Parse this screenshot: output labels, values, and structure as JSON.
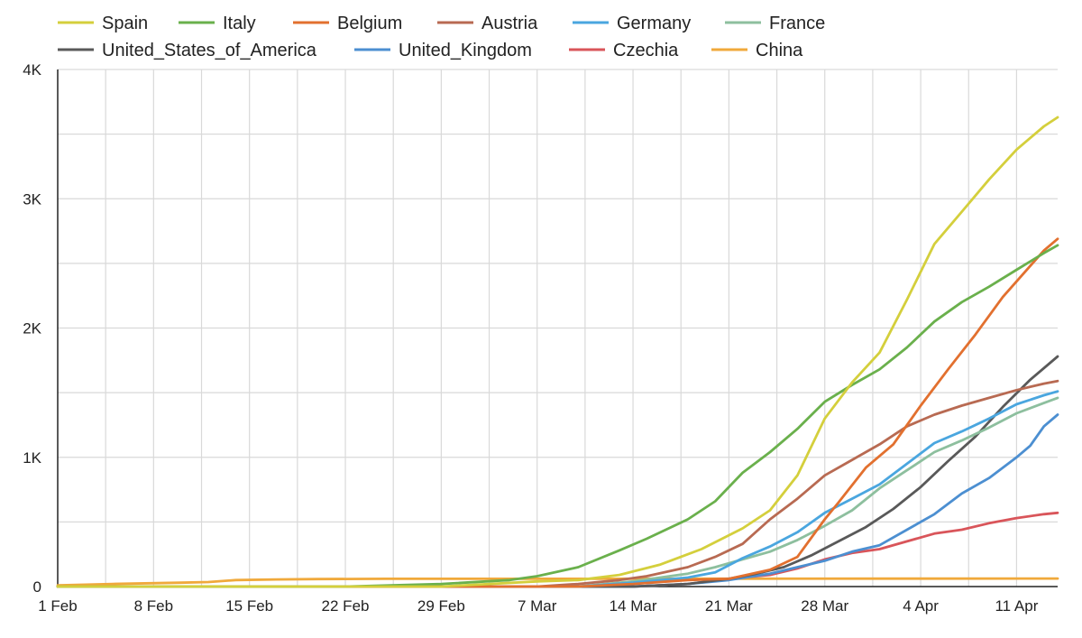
{
  "chart_data": {
    "type": "line",
    "title": "",
    "xlabel": "",
    "ylabel": "",
    "x_start": "1 Feb",
    "x_end": "14 Apr",
    "x_ticks": [
      "1 Feb",
      "8 Feb",
      "15 Feb",
      "22 Feb",
      "29 Feb",
      "7 Mar",
      "14 Mar",
      "21 Mar",
      "28 Mar",
      "4 Apr",
      "11 Apr"
    ],
    "y_ticks": [
      "0",
      "1K",
      "2K",
      "3K",
      "4K"
    ],
    "ylim": [
      0,
      4000
    ],
    "grid": true,
    "legend_position": "top",
    "series": [
      {
        "name": "Spain",
        "color": "#d4cf3c",
        "points": [
          [
            "1 Feb",
            0
          ],
          [
            "29 Feb",
            0
          ],
          [
            "7 Mar",
            40
          ],
          [
            "10 Mar",
            50
          ],
          [
            "13 Mar",
            90
          ],
          [
            "16 Mar",
            170
          ],
          [
            "19 Mar",
            290
          ],
          [
            "22 Mar",
            450
          ],
          [
            "24 Mar",
            590
          ],
          [
            "26 Mar",
            860
          ],
          [
            "28 Mar",
            1300
          ],
          [
            "30 Mar",
            1580
          ],
          [
            "1 Apr",
            1810
          ],
          [
            "3 Apr",
            2220
          ],
          [
            "5 Apr",
            2650
          ],
          [
            "7 Apr",
            2900
          ],
          [
            "9 Apr",
            3150
          ],
          [
            "11 Apr",
            3380
          ],
          [
            "13 Apr",
            3560
          ],
          [
            "14 Apr",
            3630
          ]
        ]
      },
      {
        "name": "Italy",
        "color": "#6ab04c",
        "points": [
          [
            "1 Feb",
            0
          ],
          [
            "22 Feb",
            0
          ],
          [
            "29 Feb",
            20
          ],
          [
            "5 Mar",
            50
          ],
          [
            "7 Mar",
            80
          ],
          [
            "10 Mar",
            150
          ],
          [
            "13 Mar",
            280
          ],
          [
            "15 Mar",
            370
          ],
          [
            "18 Mar",
            520
          ],
          [
            "20 Mar",
            660
          ],
          [
            "22 Mar",
            880
          ],
          [
            "24 Mar",
            1040
          ],
          [
            "26 Mar",
            1220
          ],
          [
            "28 Mar",
            1430
          ],
          [
            "30 Mar",
            1560
          ],
          [
            "1 Apr",
            1680
          ],
          [
            "3 Apr",
            1850
          ],
          [
            "5 Apr",
            2050
          ],
          [
            "7 Apr",
            2200
          ],
          [
            "9 Apr",
            2320
          ],
          [
            "11 Apr",
            2450
          ],
          [
            "13 Apr",
            2580
          ],
          [
            "14 Apr",
            2640
          ]
        ]
      },
      {
        "name": "Belgium",
        "color": "#e2702f",
        "points": [
          [
            "1 Feb",
            0
          ],
          [
            "10 Mar",
            0
          ],
          [
            "14 Mar",
            20
          ],
          [
            "18 Mar",
            50
          ],
          [
            "21 Mar",
            60
          ],
          [
            "24 Mar",
            130
          ],
          [
            "26 Mar",
            230
          ],
          [
            "28 Mar",
            520
          ],
          [
            "29 Mar",
            650
          ],
          [
            "31 Mar",
            920
          ],
          [
            "2 Apr",
            1100
          ],
          [
            "4 Apr",
            1400
          ],
          [
            "6 Apr",
            1680
          ],
          [
            "8 Apr",
            1950
          ],
          [
            "10 Apr",
            2240
          ],
          [
            "12 Apr",
            2480
          ],
          [
            "13 Apr",
            2600
          ],
          [
            "14 Apr",
            2690
          ]
        ]
      },
      {
        "name": "Austria",
        "color": "#b86a52",
        "points": [
          [
            "1 Feb",
            0
          ],
          [
            "7 Mar",
            0
          ],
          [
            "10 Mar",
            20
          ],
          [
            "13 Mar",
            50
          ],
          [
            "15 Mar",
            80
          ],
          [
            "18 Mar",
            150
          ],
          [
            "20 Mar",
            230
          ],
          [
            "22 Mar",
            330
          ],
          [
            "24 Mar",
            520
          ],
          [
            "26 Mar",
            680
          ],
          [
            "28 Mar",
            860
          ],
          [
            "30 Mar",
            980
          ],
          [
            "1 Apr",
            1100
          ],
          [
            "3 Apr",
            1240
          ],
          [
            "5 Apr",
            1330
          ],
          [
            "7 Apr",
            1400
          ],
          [
            "9 Apr",
            1460
          ],
          [
            "11 Apr",
            1520
          ],
          [
            "13 Apr",
            1570
          ],
          [
            "14 Apr",
            1590
          ]
        ]
      },
      {
        "name": "Germany",
        "color": "#4aa6df",
        "points": [
          [
            "1 Feb",
            0
          ],
          [
            "10 Mar",
            0
          ],
          [
            "14 Mar",
            30
          ],
          [
            "18 Mar",
            70
          ],
          [
            "20 Mar",
            110
          ],
          [
            "22 Mar",
            220
          ],
          [
            "24 Mar",
            310
          ],
          [
            "26 Mar",
            420
          ],
          [
            "28 Mar",
            570
          ],
          [
            "30 Mar",
            680
          ],
          [
            "1 Apr",
            790
          ],
          [
            "3 Apr",
            950
          ],
          [
            "5 Apr",
            1110
          ],
          [
            "7 Apr",
            1200
          ],
          [
            "9 Apr",
            1300
          ],
          [
            "11 Apr",
            1410
          ],
          [
            "13 Apr",
            1480
          ],
          [
            "14 Apr",
            1510
          ]
        ]
      },
      {
        "name": "France",
        "color": "#8dbf9e",
        "points": [
          [
            "1 Feb",
            0
          ],
          [
            "10 Mar",
            0
          ],
          [
            "14 Mar",
            40
          ],
          [
            "18 Mar",
            100
          ],
          [
            "20 Mar",
            150
          ],
          [
            "22 Mar",
            210
          ],
          [
            "24 Mar",
            270
          ],
          [
            "26 Mar",
            360
          ],
          [
            "28 Mar",
            470
          ],
          [
            "30 Mar",
            590
          ],
          [
            "1 Apr",
            760
          ],
          [
            "3 Apr",
            900
          ],
          [
            "5 Apr",
            1040
          ],
          [
            "7 Apr",
            1130
          ],
          [
            "9 Apr",
            1230
          ],
          [
            "11 Apr",
            1340
          ],
          [
            "13 Apr",
            1420
          ],
          [
            "14 Apr",
            1460
          ]
        ]
      },
      {
        "name": "United_States_of_America",
        "color": "#595959",
        "points": [
          [
            "1 Feb",
            0
          ],
          [
            "14 Mar",
            0
          ],
          [
            "18 Mar",
            20
          ],
          [
            "21 Mar",
            60
          ],
          [
            "23 Mar",
            100
          ],
          [
            "25 Mar",
            150
          ],
          [
            "27 Mar",
            240
          ],
          [
            "29 Mar",
            350
          ],
          [
            "31 Mar",
            460
          ],
          [
            "2 Apr",
            600
          ],
          [
            "4 Apr",
            770
          ],
          [
            "6 Apr",
            970
          ],
          [
            "8 Apr",
            1160
          ],
          [
            "10 Apr",
            1390
          ],
          [
            "12 Apr",
            1600
          ],
          [
            "14 Apr",
            1780
          ]
        ]
      },
      {
        "name": "United_Kingdom",
        "color": "#4c8fd1",
        "points": [
          [
            "1 Feb",
            0
          ],
          [
            "14 Mar",
            0
          ],
          [
            "18 Mar",
            20
          ],
          [
            "21 Mar",
            50
          ],
          [
            "24 Mar",
            100
          ],
          [
            "26 Mar",
            150
          ],
          [
            "28 Mar",
            200
          ],
          [
            "30 Mar",
            270
          ],
          [
            "1 Apr",
            320
          ],
          [
            "3 Apr",
            440
          ],
          [
            "5 Apr",
            560
          ],
          [
            "7 Apr",
            720
          ],
          [
            "9 Apr",
            840
          ],
          [
            "11 Apr",
            1000
          ],
          [
            "12 Apr",
            1090
          ],
          [
            "13 Apr",
            1240
          ],
          [
            "14 Apr",
            1330
          ]
        ]
      },
      {
        "name": "Czechia",
        "color": "#d9555a",
        "points": [
          [
            "1 Feb",
            0
          ],
          [
            "14 Mar",
            0
          ],
          [
            "18 Mar",
            20
          ],
          [
            "21 Mar",
            60
          ],
          [
            "24 Mar",
            90
          ],
          [
            "26 Mar",
            140
          ],
          [
            "28 Mar",
            210
          ],
          [
            "30 Mar",
            260
          ],
          [
            "1 Apr",
            290
          ],
          [
            "3 Apr",
            350
          ],
          [
            "5 Apr",
            410
          ],
          [
            "7 Apr",
            440
          ],
          [
            "9 Apr",
            490
          ],
          [
            "11 Apr",
            530
          ],
          [
            "13 Apr",
            560
          ],
          [
            "14 Apr",
            570
          ]
        ]
      },
      {
        "name": "China",
        "color": "#f0a93b",
        "points": [
          [
            "1 Feb",
            10
          ],
          [
            "5 Feb",
            20
          ],
          [
            "10 Feb",
            30
          ],
          [
            "12 Feb",
            35
          ],
          [
            "14 Feb",
            50
          ],
          [
            "17 Feb",
            55
          ],
          [
            "20 Feb",
            58
          ],
          [
            "25 Feb",
            60
          ],
          [
            "1 Mar",
            60
          ],
          [
            "10 Mar",
            60
          ],
          [
            "14 Apr",
            62
          ]
        ]
      }
    ]
  }
}
